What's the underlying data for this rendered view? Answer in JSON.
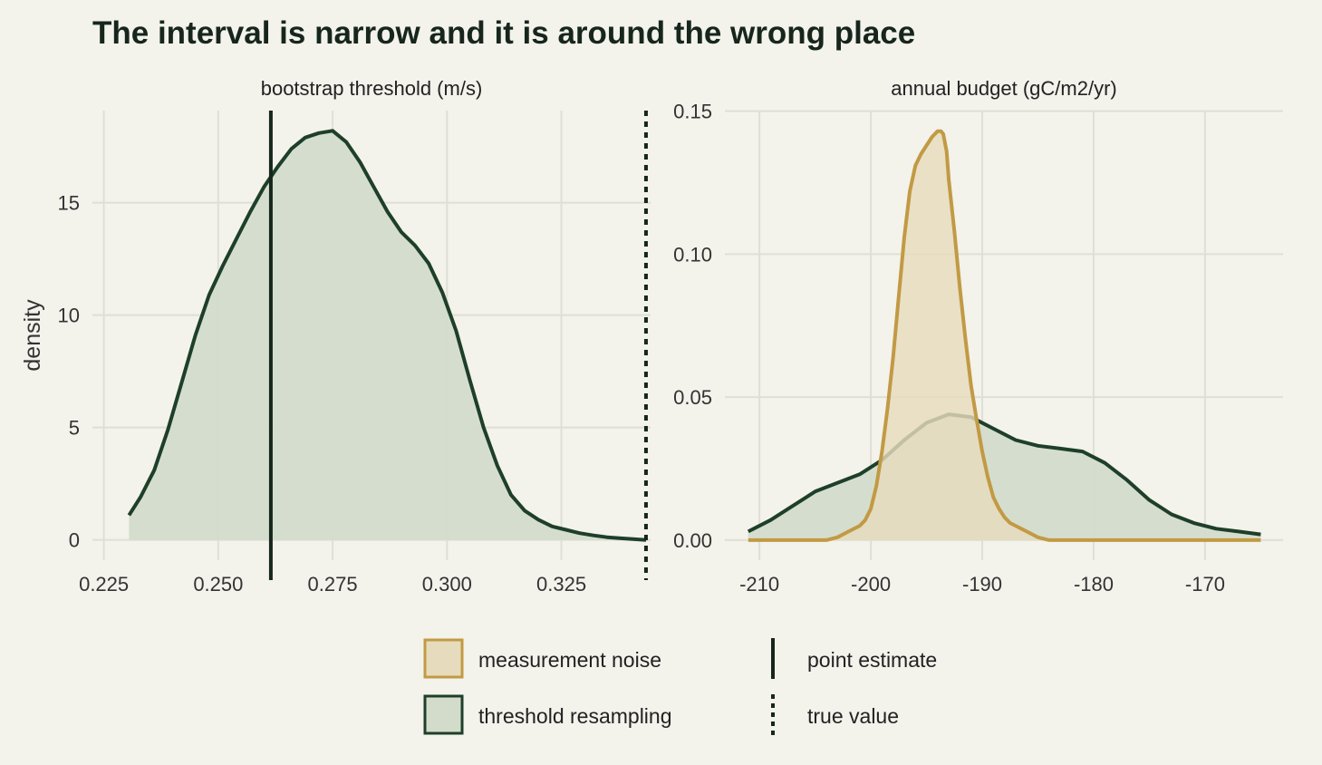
{
  "title": "The interval is narrow and it is around the wrong place",
  "y_label": "density",
  "colors": {
    "background": "#f3f2eb",
    "measurement_noise_line": "#c29a44",
    "measurement_noise_fill": "#e6dcbd",
    "threshold_resampling_line": "#1e3f2a",
    "threshold_resampling_fill": "#d3dccb",
    "reference_line": "#16261c"
  },
  "legend": {
    "fill_items": [
      {
        "key": "measurement_noise",
        "label": "measurement noise"
      },
      {
        "key": "threshold_resampling",
        "label": "threshold resampling"
      }
    ],
    "line_items": [
      {
        "key": "point_estimate",
        "label": "point estimate",
        "style": "solid"
      },
      {
        "key": "true_value",
        "label": "true value",
        "style": "dotted"
      }
    ]
  },
  "chart_data": [
    {
      "type": "area",
      "facet_label": "bootstrap threshold (m/s)",
      "xlabel": "",
      "ylabel": "density",
      "xlim": [
        0.2225,
        0.3445
      ],
      "ylim": [
        -0.9,
        19.1
      ],
      "x_ticks": [
        0.225,
        0.25,
        0.275,
        0.3,
        0.325
      ],
      "x_tick_labels": [
        "0.225",
        "0.250",
        "0.275",
        "0.300",
        "0.325"
      ],
      "y_ticks": [
        0,
        5,
        10,
        15
      ],
      "y_tick_labels": [
        "0",
        "5",
        "10",
        "15"
      ],
      "grid": true,
      "reference_lines": [
        {
          "key": "point_estimate",
          "x": 0.2615,
          "style": "solid"
        },
        {
          "key": "true_value",
          "x": 0.3435,
          "style": "dotted"
        }
      ],
      "series": [
        {
          "key": "threshold_resampling",
          "x": [
            0.2305,
            0.233,
            0.236,
            0.239,
            0.242,
            0.245,
            0.248,
            0.251,
            0.254,
            0.257,
            0.26,
            0.263,
            0.266,
            0.269,
            0.272,
            0.275,
            0.278,
            0.281,
            0.284,
            0.287,
            0.29,
            0.293,
            0.296,
            0.299,
            0.302,
            0.305,
            0.308,
            0.311,
            0.314,
            0.317,
            0.32,
            0.323,
            0.326,
            0.329,
            0.332,
            0.335,
            0.338,
            0.341,
            0.3435
          ],
          "y": [
            1.1,
            1.9,
            3.1,
            4.9,
            7.0,
            9.1,
            10.9,
            12.2,
            13.4,
            14.6,
            15.7,
            16.6,
            17.4,
            17.9,
            18.1,
            18.2,
            17.7,
            16.8,
            15.7,
            14.6,
            13.7,
            13.1,
            12.3,
            11.0,
            9.3,
            7.1,
            5.0,
            3.3,
            2.0,
            1.3,
            0.9,
            0.6,
            0.45,
            0.3,
            0.2,
            0.12,
            0.07,
            0.03,
            0.0
          ]
        }
      ]
    },
    {
      "type": "area",
      "facet_label": "annual budget (gC/m2/yr)",
      "xlabel": "",
      "ylabel": "",
      "xlim": [
        -213.1,
        -163.0
      ],
      "ylim": [
        -0.007,
        0.1502
      ],
      "x_ticks": [
        -210,
        -200,
        -190,
        -180,
        -170
      ],
      "x_tick_labels": [
        "-210",
        "-200",
        "-190",
        "-180",
        "-170"
      ],
      "y_ticks": [
        0,
        0.05,
        0.1,
        0.15
      ],
      "y_tick_labels": [
        "0.00",
        "0.05",
        "0.10",
        "0.15"
      ],
      "grid": true,
      "series": [
        {
          "key": "threshold_resampling",
          "x": [
            -211,
            -209,
            -207,
            -205,
            -203,
            -201,
            -199,
            -197,
            -195,
            -193,
            -191,
            -189,
            -187,
            -185,
            -183,
            -181,
            -179,
            -177,
            -175,
            -173,
            -171,
            -169,
            -167,
            -165
          ],
          "y": [
            0.003,
            0.007,
            0.012,
            0.017,
            0.02,
            0.023,
            0.028,
            0.035,
            0.041,
            0.044,
            0.043,
            0.039,
            0.035,
            0.033,
            0.032,
            0.031,
            0.027,
            0.021,
            0.014,
            0.009,
            0.006,
            0.004,
            0.003,
            0.002
          ]
        },
        {
          "key": "measurement_noise",
          "x": [
            -211,
            -204,
            -203,
            -202,
            -201,
            -200.5,
            -200,
            -199.5,
            -199,
            -198.5,
            -198,
            -197.5,
            -197,
            -196.5,
            -196,
            -195.5,
            -195,
            -194.5,
            -194,
            -193.7,
            -193.5,
            -193.2,
            -193,
            -192.5,
            -192,
            -191.5,
            -191,
            -190.5,
            -190,
            -189.5,
            -189,
            -188.5,
            -188,
            -187.5,
            -187,
            -186.5,
            -186,
            -185.5,
            -185,
            -184,
            -165
          ],
          "y": [
            0.0,
            0.0,
            0.001,
            0.003,
            0.005,
            0.007,
            0.011,
            0.019,
            0.031,
            0.046,
            0.064,
            0.085,
            0.106,
            0.122,
            0.131,
            0.135,
            0.138,
            0.141,
            0.143,
            0.143,
            0.142,
            0.136,
            0.126,
            0.108,
            0.088,
            0.07,
            0.054,
            0.042,
            0.031,
            0.022,
            0.015,
            0.011,
            0.008,
            0.006,
            0.005,
            0.004,
            0.003,
            0.002,
            0.001,
            0.0,
            0.0
          ]
        }
      ]
    }
  ]
}
